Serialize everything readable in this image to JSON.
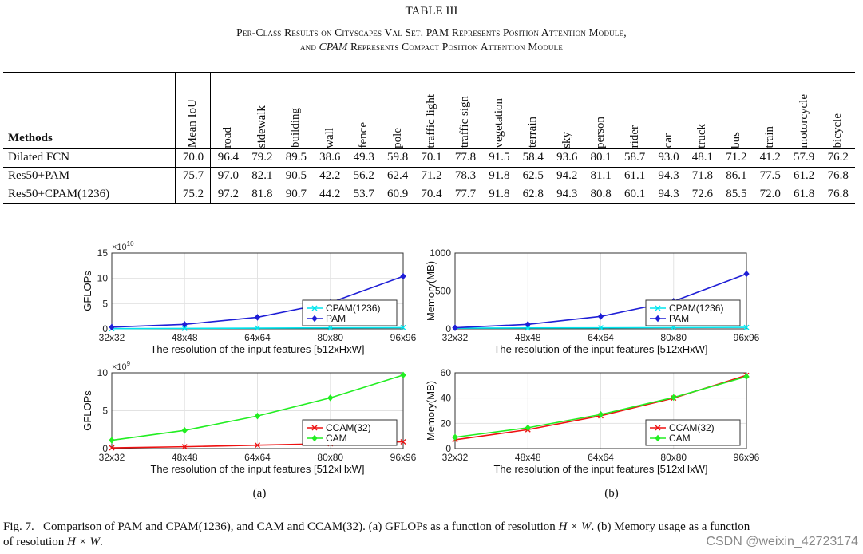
{
  "table": {
    "label": "TABLE III",
    "caption_line1": "Per-Class Results on Cityscapes Val Set. PAM Represents Position Attention Module,",
    "caption_line2_pre": "and ",
    "caption_line2_em": "CPAM",
    "caption_line2_post": " Represents Compact Position Attention Module",
    "methods_header": "Methods",
    "mean_iou_header": "Mean IoU",
    "classes": [
      "road",
      "sidewalk",
      "building",
      "wall",
      "fence",
      "pole",
      "traffic light",
      "traffic sign",
      "vegetation",
      "terrain",
      "sky",
      "person",
      "rider",
      "car",
      "truck",
      "bus",
      "train",
      "motorcycle",
      "bicycle"
    ],
    "rows": [
      {
        "method": "Dilated FCN",
        "mean": "70.0",
        "values": [
          "96.4",
          "79.2",
          "89.5",
          "38.6",
          "49.3",
          "59.8",
          "70.1",
          "77.8",
          "91.5",
          "58.4",
          "93.6",
          "80.1",
          "58.7",
          "93.0",
          "48.1",
          "71.2",
          "41.2",
          "57.9",
          "76.2"
        ]
      },
      {
        "method": "Res50+PAM",
        "mean": "75.7",
        "values": [
          "97.0",
          "82.1",
          "90.5",
          "42.2",
          "56.2",
          "62.4",
          "71.2",
          "78.3",
          "91.8",
          "62.5",
          "94.2",
          "81.1",
          "61.1",
          "94.3",
          "71.8",
          "86.1",
          "77.5",
          "61.2",
          "76.8"
        ]
      },
      {
        "method": "Res50+CPAM(1236)",
        "mean": "75.2",
        "values": [
          "97.2",
          "81.8",
          "90.7",
          "44.2",
          "53.7",
          "60.9",
          "70.4",
          "77.7",
          "91.8",
          "62.8",
          "94.3",
          "80.8",
          "60.1",
          "94.3",
          "72.6",
          "85.5",
          "72.0",
          "61.8",
          "76.8"
        ]
      }
    ]
  },
  "chart_data": [
    {
      "type": "line",
      "categories": [
        "32x32",
        "48x48",
        "64x64",
        "80x80",
        "96x96"
      ],
      "xlabel": "The resolution of the input features [512xHxW]",
      "ylabel": "GFLOPs",
      "multiplier": "×10",
      "multiplier_exp": "10",
      "ylim": [
        0,
        15
      ],
      "yticks": [
        0,
        5,
        10,
        15
      ],
      "legend_position": "bottom-right",
      "series": [
        {
          "name": "CPAM(1236)",
          "color": "#00e5ee",
          "marker": "x",
          "values": [
            0.05,
            0.1,
            0.15,
            0.2,
            0.25
          ]
        },
        {
          "name": "PAM",
          "color": "#1f1fd6",
          "marker": "diamond",
          "values": [
            0.35,
            0.9,
            2.3,
            5.2,
            10.4
          ]
        }
      ]
    },
    {
      "type": "line",
      "categories": [
        "32x32",
        "48x48",
        "64x64",
        "80x80",
        "96x96"
      ],
      "xlabel": "The resolution of the input features [512xHxW]",
      "ylabel": "Memory(MB)",
      "ylim": [
        0,
        1000
      ],
      "yticks": [
        0,
        500,
        1000
      ],
      "legend_position": "bottom-right",
      "series": [
        {
          "name": "CPAM(1236)",
          "color": "#00e5ee",
          "marker": "x",
          "values": [
            10,
            12,
            14,
            17,
            20
          ]
        },
        {
          "name": "PAM",
          "color": "#1f1fd6",
          "marker": "diamond",
          "values": [
            15,
            60,
            165,
            365,
            725
          ]
        }
      ]
    },
    {
      "type": "line",
      "categories": [
        "32x32",
        "48x48",
        "64x64",
        "80x80",
        "96x96"
      ],
      "xlabel": "The resolution of the input features [512xHxW]",
      "ylabel": "GFLOPs",
      "multiplier": "×10",
      "multiplier_exp": "9",
      "ylim": [
        0,
        10
      ],
      "yticks": [
        0,
        5,
        10
      ],
      "legend_position": "bottom-right",
      "series": [
        {
          "name": "CCAM(32)",
          "color": "#ee1111",
          "marker": "x",
          "values": [
            0.1,
            0.25,
            0.45,
            0.65,
            0.9
          ]
        },
        {
          "name": "CAM",
          "color": "#22ee22",
          "marker": "diamond",
          "values": [
            1.1,
            2.4,
            4.3,
            6.7,
            9.7
          ]
        }
      ]
    },
    {
      "type": "line",
      "categories": [
        "32x32",
        "48x48",
        "64x64",
        "80x80",
        "96x96"
      ],
      "xlabel": "The resolution of the input features [512xHxW]",
      "ylabel": "Memory(MB)",
      "ylim": [
        0,
        60
      ],
      "yticks": [
        0,
        20,
        40,
        60
      ],
      "legend_position": "bottom-right",
      "series": [
        {
          "name": "CCAM(32)",
          "color": "#ee1111",
          "marker": "x",
          "values": [
            7,
            15,
            26,
            40,
            58
          ]
        },
        {
          "name": "CAM",
          "color": "#22ee22",
          "marker": "diamond",
          "values": [
            9,
            16.5,
            27,
            40.5,
            57
          ]
        }
      ]
    }
  ],
  "figure": {
    "sub_a": "(a)",
    "sub_b": "(b)",
    "caption_prefix": "Fig. 7.",
    "caption_text1": "Comparison of PAM and CPAM(1236), and CAM and CCAM(32). (a) GFLOPs as a function of resolution ",
    "caption_math1": "H × W",
    "caption_text2": ". (b) Memory usage as a function",
    "caption_text3": "of resolution ",
    "caption_math2": "H × W",
    "caption_text4": "."
  },
  "watermark": "CSDN @weixin_42723174"
}
